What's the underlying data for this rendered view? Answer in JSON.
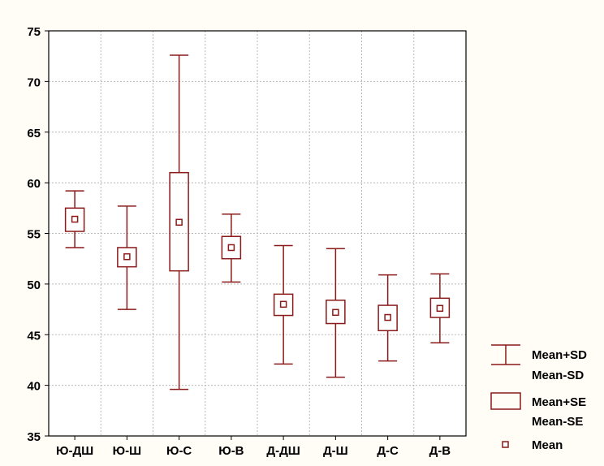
{
  "chart_data": {
    "type": "box",
    "categories": [
      "Ю-ДШ",
      "Ю-Ш",
      "Ю-С",
      "Ю-В",
      "Д-ДШ",
      "Д-Ш",
      "Д-С",
      "Д-В"
    ],
    "mean": [
      56.4,
      52.7,
      56.1,
      53.6,
      48.0,
      47.2,
      46.7,
      47.6
    ],
    "mean_minus_se": [
      55.2,
      51.7,
      51.3,
      52.5,
      46.9,
      46.1,
      45.4,
      46.7
    ],
    "mean_plus_se": [
      57.5,
      53.6,
      61.0,
      54.7,
      49.0,
      48.4,
      47.9,
      48.6
    ],
    "mean_minus_sd": [
      53.6,
      47.5,
      39.6,
      50.2,
      42.1,
      40.8,
      42.4,
      44.2
    ],
    "mean_plus_sd": [
      59.2,
      57.7,
      72.6,
      56.9,
      53.8,
      53.5,
      50.9,
      51.0
    ],
    "ylim": [
      35,
      75
    ],
    "yticks": [
      35,
      40,
      45,
      50,
      55,
      60,
      65,
      70,
      75
    ],
    "grid": true,
    "legend_position": "right",
    "legend": [
      {
        "kind": "whisker",
        "label1": "Mean+SD",
        "label2": "Mean-SD"
      },
      {
        "kind": "box",
        "label1": "Mean+SE",
        "label2": "Mean-SE"
      },
      {
        "kind": "mean",
        "label1": "Mean"
      }
    ],
    "colors": {
      "series": "#8b1a1a",
      "grid": "#b8b8b8",
      "axis": "#000000",
      "background": "#fffdf5"
    }
  }
}
